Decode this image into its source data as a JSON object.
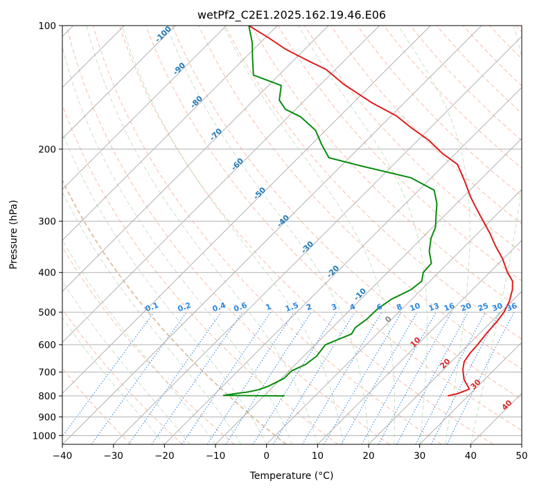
{
  "chart_data": {
    "type": "line",
    "title": "wetPf2_C2E1.2025.162.19.46.E06",
    "xlabel": "Temperature (°C)",
    "ylabel": "Pressure (hPa)",
    "xlim": [
      -40,
      50
    ],
    "ylim": [
      1050,
      100
    ],
    "y_scale": "log",
    "grid": true,
    "x_ticks": [
      -40,
      -30,
      -20,
      -10,
      0,
      10,
      20,
      30,
      40,
      50
    ],
    "x_tick_labels": [
      "−40",
      "−30",
      "−20",
      "−10",
      "0",
      "10",
      "20",
      "30",
      "40",
      "50"
    ],
    "y_ticks": [
      100,
      200,
      300,
      400,
      500,
      600,
      700,
      800,
      900,
      1000
    ],
    "y_tick_labels": [
      "100",
      "200",
      "300",
      "400",
      "500",
      "600",
      "700",
      "800",
      "900",
      "1000"
    ],
    "series": [
      {
        "color": "#e0191a",
        "role": "temperature",
        "points": [
          [
            26.0,
            800
          ],
          [
            27.5,
            790
          ],
          [
            28.9,
            770
          ],
          [
            26.0,
            730
          ],
          [
            23.8,
            690
          ],
          [
            22.5,
            660
          ],
          [
            22.0,
            630
          ],
          [
            21.8,
            600
          ],
          [
            21.3,
            560
          ],
          [
            21.1,
            530
          ],
          [
            20.6,
            500
          ],
          [
            19.5,
            470
          ],
          [
            17.8,
            440
          ],
          [
            16.2,
            420
          ],
          [
            13.5,
            400
          ],
          [
            9.8,
            370
          ],
          [
            6.0,
            345
          ],
          [
            2.2,
            320
          ],
          [
            -1.3,
            300
          ],
          [
            -5.0,
            280
          ],
          [
            -8.5,
            262
          ],
          [
            -12.7,
            240
          ],
          [
            -17.5,
            218
          ],
          [
            -22.6,
            205
          ],
          [
            -28.0,
            190
          ],
          [
            -33.5,
            178
          ],
          [
            -39.0,
            166
          ],
          [
            -46.5,
            154
          ],
          [
            -55.5,
            139
          ],
          [
            -61.8,
            128
          ],
          [
            -67.8,
            121
          ],
          [
            -73.9,
            114
          ],
          [
            -79.4,
            107
          ],
          [
            -85.6,
            100
          ]
        ]
      },
      {
        "color": "#078b0b",
        "role": "dewpoint",
        "points": [
          [
            -6.0,
            800
          ],
          [
            -18.0,
            798
          ],
          [
            -15.6,
            788
          ],
          [
            -14.0,
            783
          ],
          [
            -12.3,
            773
          ],
          [
            -11.0,
            757
          ],
          [
            -9.5,
            725
          ],
          [
            -9.5,
            695
          ],
          [
            -8.0,
            670
          ],
          [
            -7.5,
            640
          ],
          [
            -8.0,
            600
          ],
          [
            -5.0,
            565
          ],
          [
            -5.5,
            545
          ],
          [
            -4.9,
            520
          ],
          [
            -4.8,
            490
          ],
          [
            -4.0,
            465
          ],
          [
            -2.0,
            440
          ],
          [
            -1.6,
            420
          ],
          [
            -3.0,
            400
          ],
          [
            -3.2,
            380
          ],
          [
            -6.0,
            355
          ],
          [
            -8.2,
            330
          ],
          [
            -9.5,
            310
          ],
          [
            -11.5,
            292
          ],
          [
            -13.8,
            272
          ],
          [
            -17.0,
            252
          ],
          [
            -24.0,
            235
          ],
          [
            -36.0,
            220
          ],
          [
            -44.0,
            210
          ],
          [
            -48.0,
            195
          ],
          [
            -52.0,
            180
          ],
          [
            -57.5,
            167
          ],
          [
            -62.0,
            160
          ],
          [
            -65.0,
            152
          ],
          [
            -67.5,
            140
          ],
          [
            -75.0,
            132
          ],
          [
            -78.5,
            120
          ],
          [
            -81.6,
            110
          ],
          [
            -85.6,
            100
          ]
        ]
      }
    ],
    "dry_adiabat_labels": [
      "-100",
      "-90",
      "-80",
      "-70",
      "-60",
      "-50",
      "-40",
      "-30",
      "-20",
      "-10",
      "0",
      "10",
      "20",
      "30",
      "40"
    ],
    "mixing_ratio_labels": [
      "0.1",
      "0.2",
      "0.4",
      "0.6",
      "1",
      "1.5",
      "2",
      "3",
      "4",
      "6",
      "8",
      "10",
      "13",
      "16",
      "20",
      "25",
      "30",
      "36"
    ]
  }
}
